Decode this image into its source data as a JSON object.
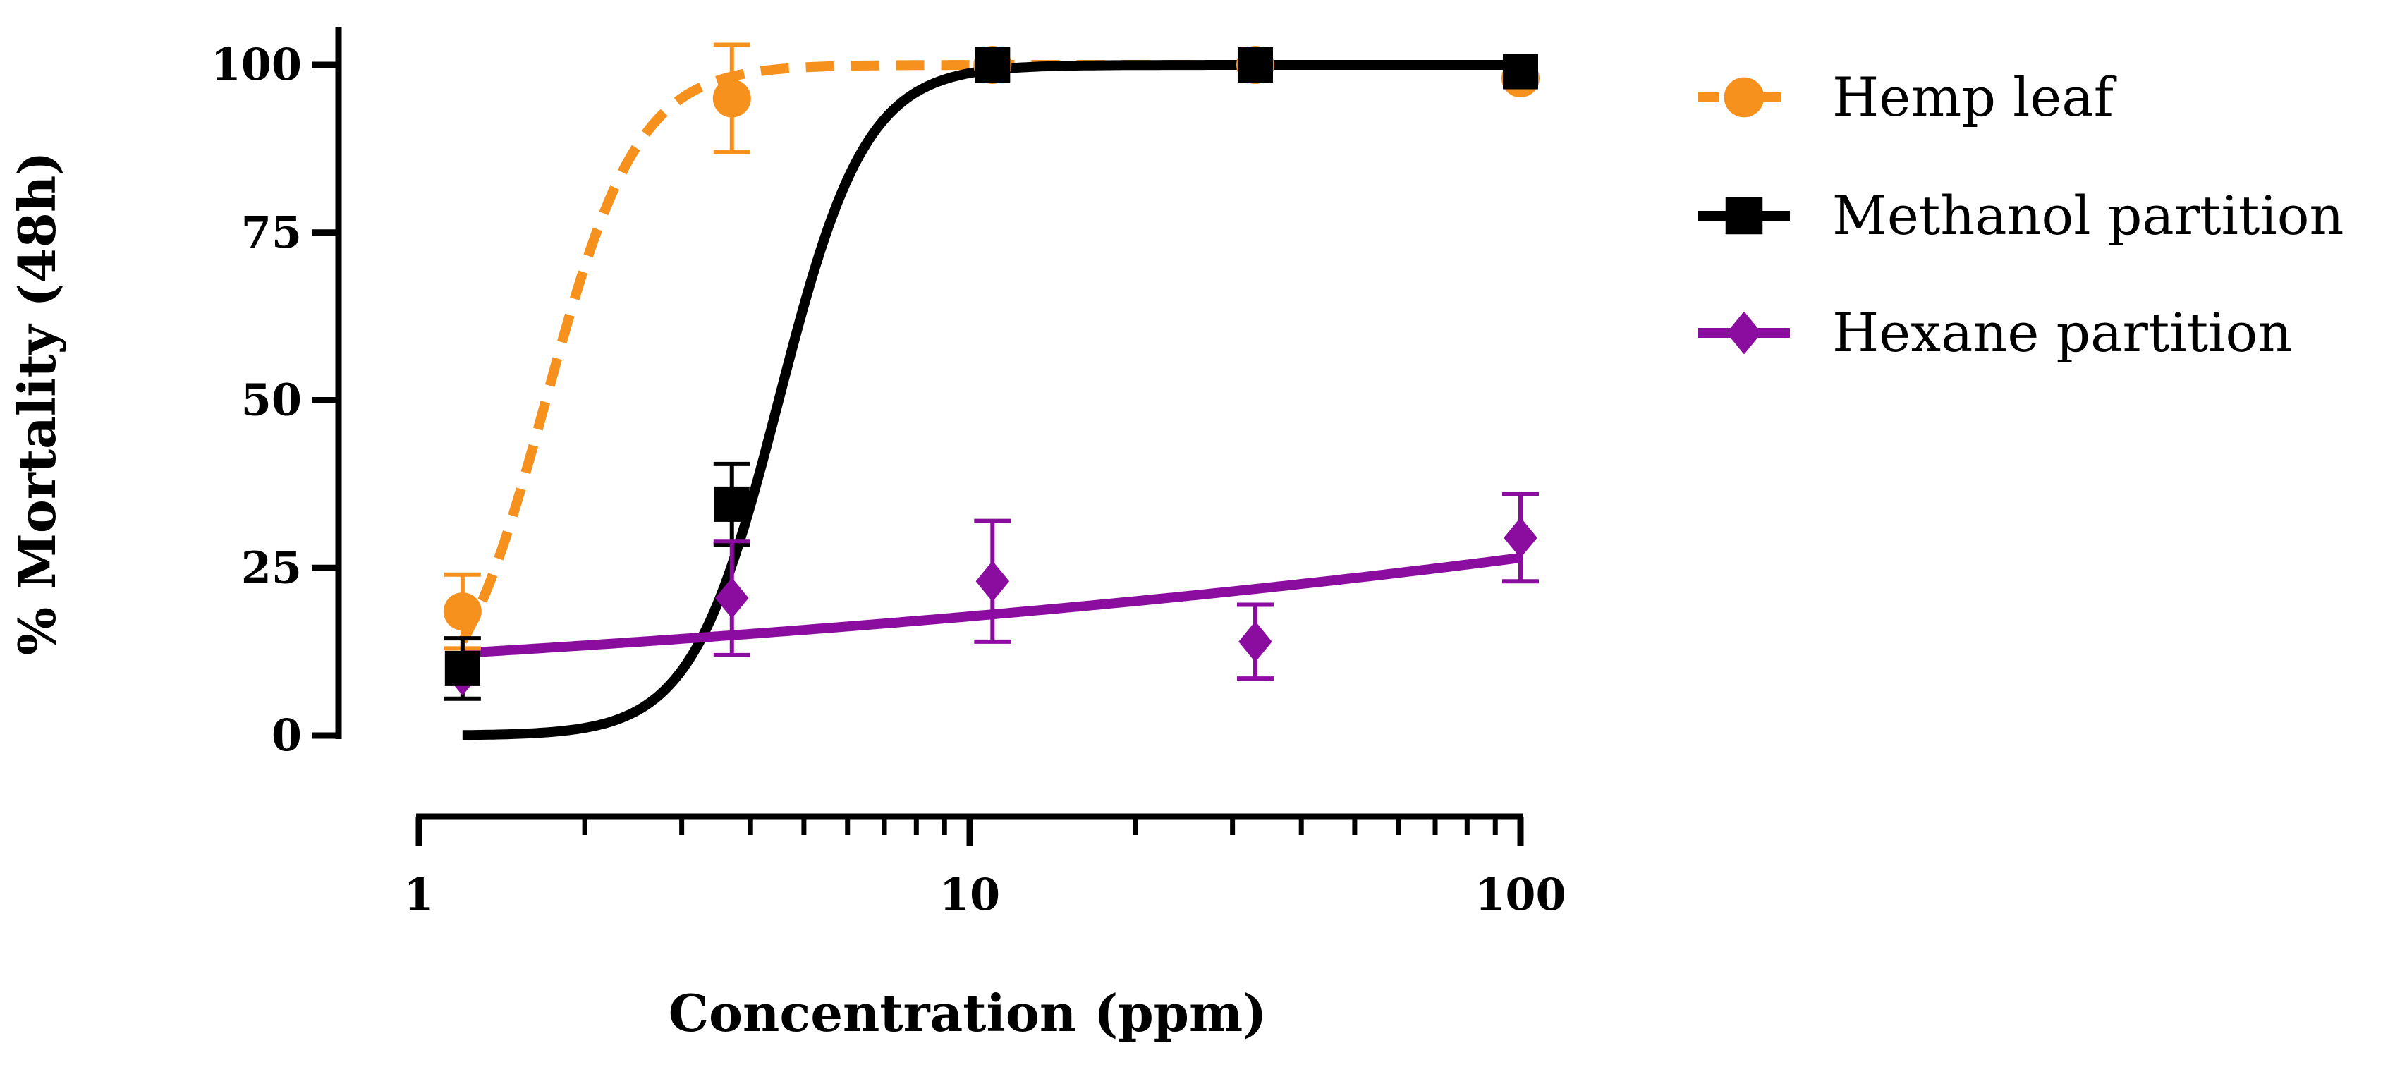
{
  "chart_data": {
    "type": "scatter",
    "title": "",
    "xlabel": "Concentration (ppm)",
    "ylabel": "% Mortality (48h)",
    "xscale": "log",
    "xlim": [
      1,
      100
    ],
    "ylim": [
      0,
      100
    ],
    "xticks": [
      {
        "value": 1,
        "label": "1"
      },
      {
        "value": 10,
        "label": "10"
      },
      {
        "value": 100,
        "label": "100"
      }
    ],
    "yticks": [
      {
        "value": 0,
        "label": "0"
      },
      {
        "value": 25,
        "label": "25"
      },
      {
        "value": 50,
        "label": "50"
      },
      {
        "value": 75,
        "label": "75"
      },
      {
        "value": 100,
        "label": "100"
      }
    ],
    "legend_position": "right",
    "series": [
      {
        "name": "Hemp leaf",
        "color": "#F7911E",
        "marker": "circle",
        "line_style": "dashed",
        "points": [
          {
            "x": 1.2,
            "y": 18.5,
            "err": 5.5
          },
          {
            "x": 3.7,
            "y": 95,
            "err": 8
          },
          {
            "x": 11,
            "y": 100,
            "err": 0
          },
          {
            "x": 33,
            "y": 100,
            "err": 0
          },
          {
            "x": 100,
            "y": 98,
            "err": 0
          }
        ],
        "fit": {
          "model": "hill",
          "bottom": 0,
          "top": 100,
          "ec50": 1.7,
          "hill": 5.2,
          "x_start": 1.2,
          "x_end": 100
        }
      },
      {
        "name": "Methanol partition",
        "color": "#000000",
        "marker": "square",
        "line_style": "solid",
        "points": [
          {
            "x": 1.2,
            "y": 10,
            "err": 4.5
          },
          {
            "x": 3.7,
            "y": 34.5,
            "err": 6
          },
          {
            "x": 11,
            "y": 100,
            "err": 0
          },
          {
            "x": 33,
            "y": 100,
            "err": 0
          },
          {
            "x": 100,
            "y": 99,
            "err": 0
          }
        ],
        "fit": {
          "model": "hill",
          "bottom": 0,
          "top": 100,
          "ec50": 4.5,
          "hill": 5.5,
          "x_start": 1.2,
          "x_end": 100
        }
      },
      {
        "name": "Hexane partition",
        "color": "#8B0DA0",
        "marker": "diamond",
        "line_style": "solid",
        "points": [
          {
            "x": 1.2,
            "y": 9,
            "err": 0
          },
          {
            "x": 3.7,
            "y": 20.5,
            "err": 8.5
          },
          {
            "x": 11,
            "y": 23,
            "err": 9
          },
          {
            "x": 33,
            "y": 14,
            "err": 5.5
          },
          {
            "x": 100,
            "y": 29.5,
            "err": 6.5
          }
        ],
        "fit": {
          "model": "exp_log",
          "y_at_xstart": 12.3,
          "y_at_xend": 26.5,
          "x_start": 1.2,
          "x_end": 100
        }
      }
    ]
  }
}
